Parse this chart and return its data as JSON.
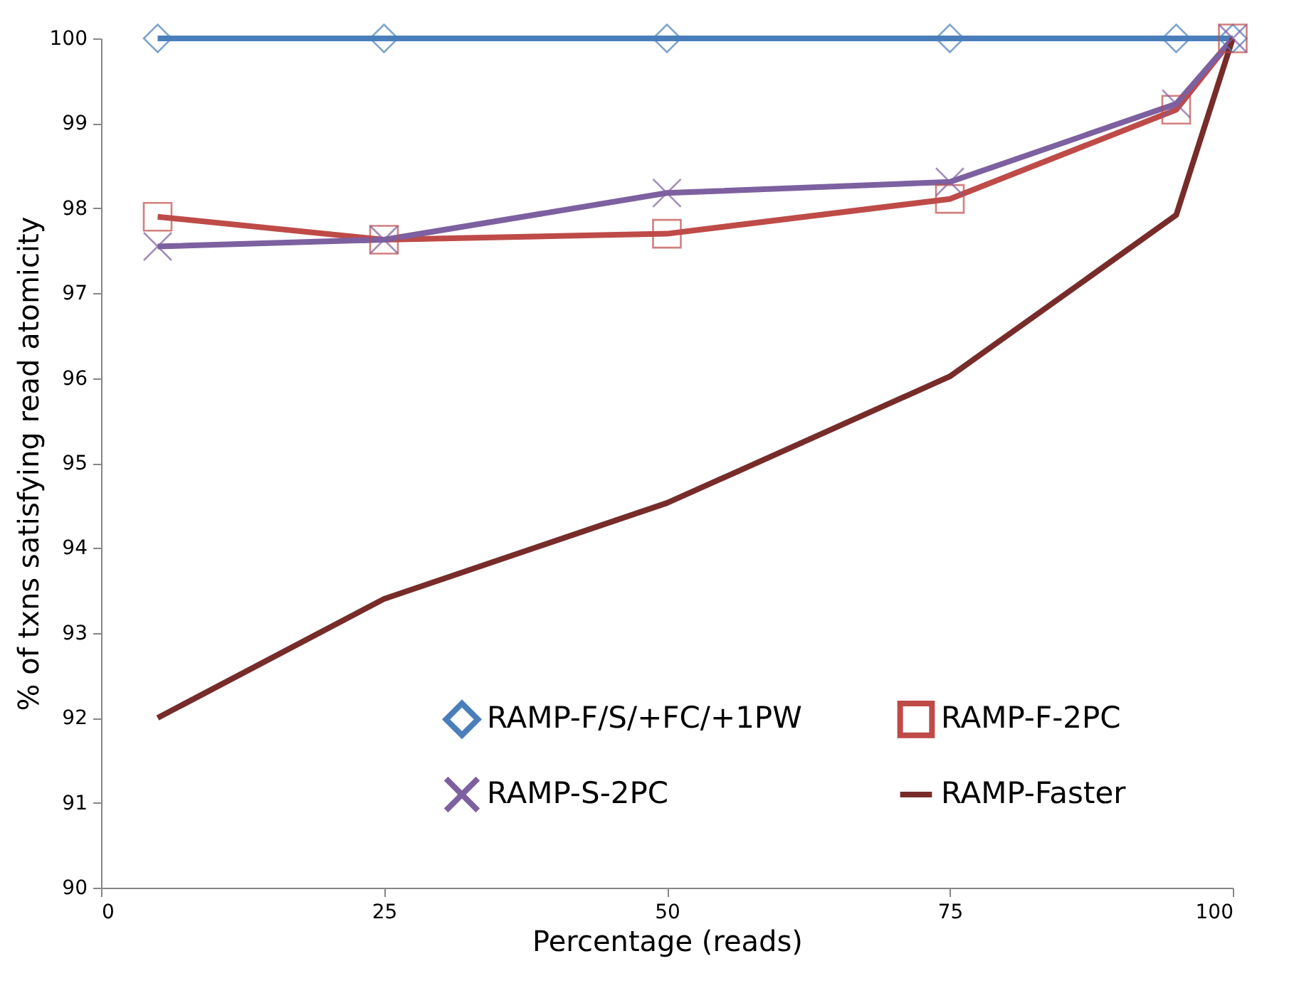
{
  "chart_data": {
    "type": "line",
    "xlabel": "Percentage (reads)",
    "ylabel": "% of txns satisfying read atomicity",
    "x": [
      5,
      25,
      50,
      75,
      95,
      100
    ],
    "xlim": [
      0,
      100
    ],
    "xticks": [
      0,
      25,
      50,
      75,
      100
    ],
    "ylim": [
      90,
      100
    ],
    "yticks": [
      90,
      91,
      92,
      93,
      94,
      95,
      96,
      97,
      98,
      99,
      100
    ],
    "grid": false,
    "legend": "bottom",
    "line_style": "solid",
    "series": [
      {
        "name": "RAMP-F/S/+FC/+1PW",
        "color": "#4a7ebb",
        "marker": "diamond",
        "values": [
          100,
          100,
          100,
          100,
          100,
          100
        ]
      },
      {
        "name": "RAMP-F-2PC",
        "color": "#be4b48",
        "marker": "square",
        "values": [
          97.9,
          97.63,
          97.7,
          98.11,
          99.16,
          100
        ]
      },
      {
        "name": "RAMP-S-2PC",
        "color": "#7d60a0",
        "marker": "cross",
        "values": [
          97.55,
          97.63,
          98.18,
          98.31,
          99.23,
          100
        ]
      },
      {
        "name": "RAMP-Faster",
        "color": "#772c2a",
        "marker": "none",
        "values": [
          92.0,
          93.4,
          94.53,
          96.02,
          97.92,
          100
        ]
      }
    ]
  }
}
